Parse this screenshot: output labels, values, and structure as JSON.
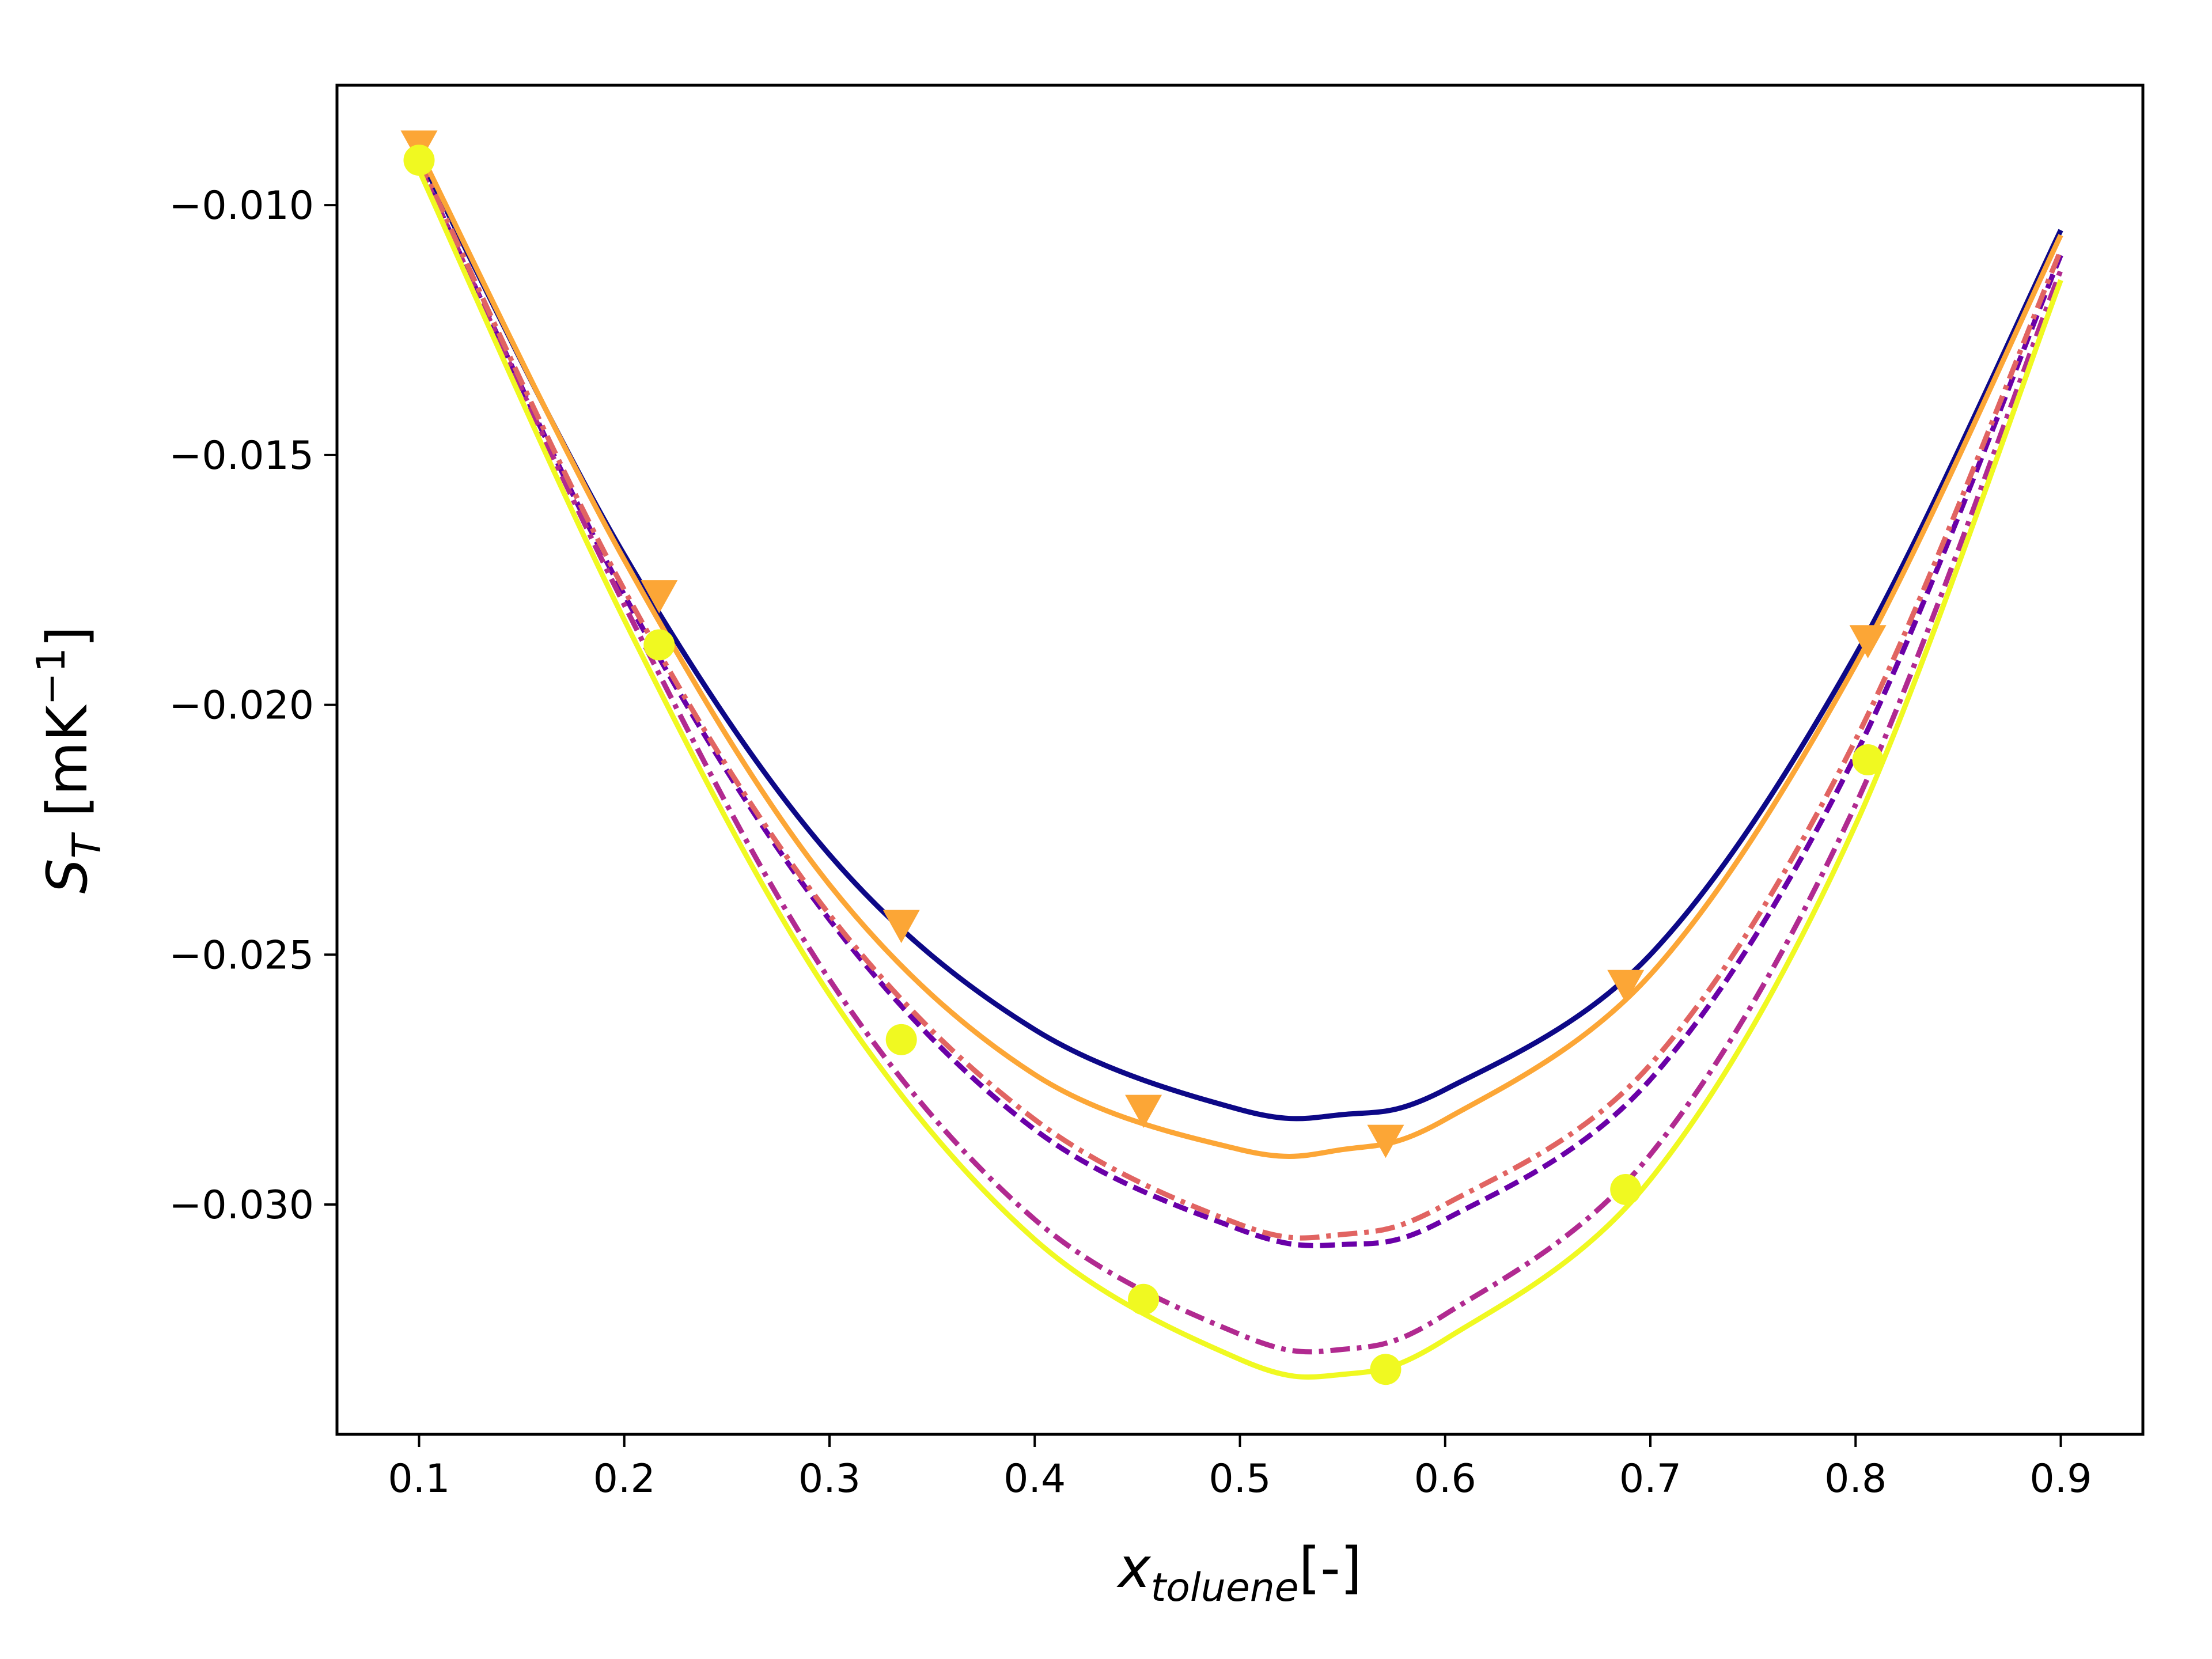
{
  "chart_data": {
    "type": "line",
    "xlabel": {
      "main": "x",
      "sub": "toluene",
      "suffix": "[-]"
    },
    "ylabel": {
      "main": "S",
      "sub": "T",
      "suffix": " [mK",
      "sup": "−1",
      "close": "]"
    },
    "xlim": [
      0.06,
      0.94
    ],
    "ylim": [
      -0.0346,
      -0.0076
    ],
    "xticks": [
      0.1,
      0.2,
      0.3,
      0.4,
      0.5,
      0.6,
      0.7,
      0.8,
      0.9
    ],
    "xtick_labels": [
      "0.1",
      "0.2",
      "0.3",
      "0.4",
      "0.5",
      "0.6",
      "0.7",
      "0.8",
      "0.9"
    ],
    "yticks": [
      -0.01,
      -0.015,
      -0.02,
      -0.025,
      -0.03
    ],
    "ytick_labels": [
      "−0.010",
      "−0.015",
      "−0.020",
      "−0.025",
      "−0.030"
    ],
    "grid": false,
    "series": [
      {
        "color": "#0d0887",
        "dash": "solid",
        "marker": "none",
        "x": [
          0.1,
          0.2,
          0.3,
          0.4,
          0.5,
          0.55,
          0.6,
          0.7,
          0.8,
          0.9
        ],
        "y": [
          -0.009,
          -0.017,
          -0.023,
          -0.0265,
          -0.0281,
          -0.0282,
          -0.0277,
          -0.025,
          -0.019,
          -0.0105
        ]
      },
      {
        "color": "#6a00a8",
        "dash": "dash",
        "marker": "none",
        "x": [
          0.1,
          0.2,
          0.3,
          0.4,
          0.5,
          0.55,
          0.6,
          0.7,
          0.8,
          0.9
        ],
        "y": [
          -0.0092,
          -0.0178,
          -0.0243,
          -0.0285,
          -0.0305,
          -0.0308,
          -0.0303,
          -0.0275,
          -0.021,
          -0.011
        ]
      },
      {
        "color": "#b12a90",
        "dash": "dashdot",
        "marker": "none",
        "x": [
          0.1,
          0.2,
          0.3,
          0.4,
          0.5,
          0.55,
          0.6,
          0.7,
          0.8,
          0.9
        ],
        "y": [
          -0.0092,
          -0.018,
          -0.0255,
          -0.0303,
          -0.0326,
          -0.0329,
          -0.0322,
          -0.029,
          -0.022,
          -0.0113
        ]
      },
      {
        "color": "#e16462",
        "dash": "dashdot",
        "marker": "none",
        "x": [
          0.1,
          0.2,
          0.3,
          0.4,
          0.5,
          0.55,
          0.6,
          0.7,
          0.8,
          0.9
        ],
        "y": [
          -0.0091,
          -0.0177,
          -0.0242,
          -0.0283,
          -0.0304,
          -0.0306,
          -0.03,
          -0.0272,
          -0.0207,
          -0.0109
        ]
      },
      {
        "color": "#fca636",
        "dash": "solid",
        "marker": "triangle-down",
        "x": [
          0.1,
          0.2,
          0.3,
          0.4,
          0.5,
          0.55,
          0.6,
          0.7,
          0.8,
          0.9
        ],
        "y": [
          -0.0089,
          -0.0171,
          -0.0236,
          -0.0274,
          -0.0289,
          -0.0289,
          -0.0283,
          -0.0254,
          -0.0192,
          -0.0106
        ],
        "marker_x": [
          0.1,
          0.217,
          0.335,
          0.453,
          0.571,
          0.688,
          0.806
        ],
        "marker_y": [
          -0.0088,
          -0.0178,
          -0.0244,
          -0.0281,
          -0.0287,
          -0.0256,
          -0.0187
        ]
      },
      {
        "color": "#f0f921",
        "dash": "solid",
        "marker": "circle",
        "x": [
          0.1,
          0.2,
          0.3,
          0.4,
          0.5,
          0.55,
          0.6,
          0.7,
          0.8,
          0.9
        ],
        "y": [
          -0.0093,
          -0.0183,
          -0.0258,
          -0.0307,
          -0.0331,
          -0.0334,
          -0.0327,
          -0.0295,
          -0.0224,
          -0.0115
        ],
        "marker_x": [
          0.1,
          0.217,
          0.335,
          0.453,
          0.571,
          0.688,
          0.806
        ],
        "marker_y": [
          -0.0091,
          -0.0188,
          -0.0267,
          -0.0319,
          -0.0333,
          -0.0297,
          -0.0211
        ]
      }
    ]
  }
}
